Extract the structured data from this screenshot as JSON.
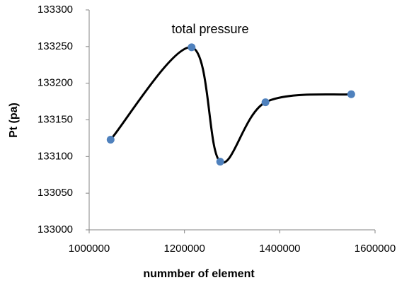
{
  "chart_data": {
    "type": "scatter",
    "title": "total pressure",
    "x_label": "nummber of element",
    "y_label": "Pt (pa)",
    "x": [
      1045000,
      1215000,
      1275000,
      1370000,
      1550000
    ],
    "values": [
      133123,
      133249,
      133093,
      133174,
      133185
    ],
    "line_color": "#000000",
    "marker_color": "#4f81bd",
    "smooth": true,
    "xlim": [
      1000000,
      1600000
    ],
    "xticks": [
      1000000,
      1200000,
      1400000,
      1600000
    ],
    "ylim": [
      133000,
      133300
    ],
    "yticks": [
      133000,
      133050,
      133100,
      133150,
      133200,
      133250,
      133300
    ]
  }
}
